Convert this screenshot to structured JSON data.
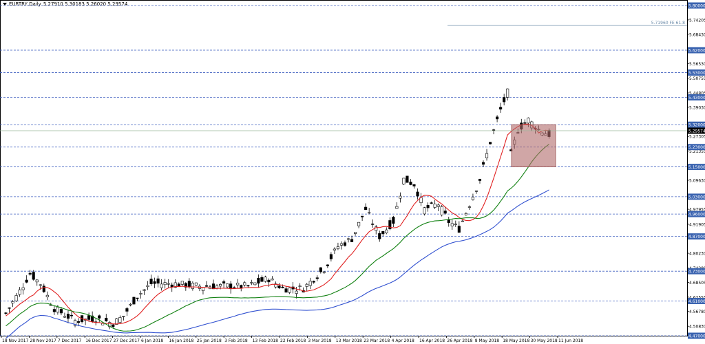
{
  "header": {
    "symbol": "EURTRY,Daily",
    "ohlc": "5.27910 5.30183 5.26020 5.29574"
  },
  "chart_data": {
    "type": "candlestick",
    "ylim": [
      4.47,
      5.8
    ],
    "price_ticks": [
      "5.74205",
      "5.68430",
      "5.56530",
      "5.50755",
      "5.44805",
      "5.39030",
      "5.27305",
      "5.21355",
      "5.09630",
      "4.97955",
      "4.91905",
      "4.80230",
      "4.74280",
      "4.68505",
      "4.62555",
      "4.56780",
      "4.50830"
    ],
    "levels": [
      {
        "value": 5.8,
        "label": "5.80000"
      },
      {
        "value": 5.62,
        "label": "5.62000"
      },
      {
        "value": 5.53,
        "label": "5.53000"
      },
      {
        "value": 5.43,
        "label": "5.43000"
      },
      {
        "value": 5.32,
        "label": "5.32000"
      },
      {
        "value": 5.23,
        "label": "5.23000"
      },
      {
        "value": 5.15,
        "label": "5.15000"
      },
      {
        "value": 5.03,
        "label": "5.03000"
      },
      {
        "value": 4.96,
        "label": "4.96000"
      },
      {
        "value": 4.87,
        "label": "4.87000"
      },
      {
        "value": 4.73,
        "label": "4.73000"
      },
      {
        "value": 4.61,
        "label": "4.61000"
      },
      {
        "value": 4.47,
        "label": "4.47000"
      }
    ],
    "current_price": {
      "value": 5.29574,
      "label": "5.29574"
    },
    "fibo_label": "5.71960 FE 61.8",
    "fibo_value": 5.7196,
    "date_labels": [
      "18 Nov 2017",
      "28 Nov 2017",
      "7 Dec 2017",
      "16 Dec 2017",
      "27 Dec 2017",
      "6 Jan 2018",
      "16 Jan 2018",
      "25 Jan 2018",
      "3 Feb 2018",
      "13 Feb 2018",
      "22 Feb 2018",
      "3 Mar 2018",
      "13 Mar 2018",
      "23 Mar 2018",
      "4 Apr 2018",
      "16 Apr 2018",
      "26 Apr 2018",
      "8 May 2018",
      "18 May 2018",
      "30 May 2018",
      "11 Jun 2018"
    ],
    "colors": {
      "level_line": "#4060c0",
      "label_bg": "#3a63b0",
      "ma_fast": "#e02020",
      "ma_mid": "#108010",
      "ma_slow": "#3050d0",
      "box": "#b06a6a",
      "fibo": "#6a8aa8"
    }
  }
}
